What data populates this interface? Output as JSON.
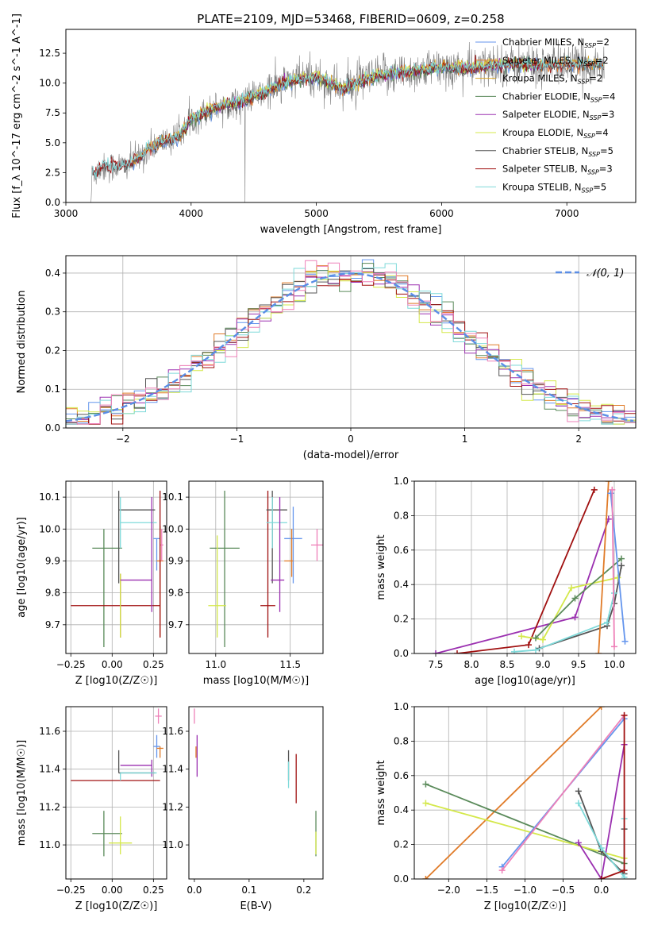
{
  "figure_title": "PLATE=2109, MJD=53468, FIBERID=0609, z=0.258",
  "colors": {
    "chabrier_miles": "#6495ed",
    "salpeter_miles": "#e07b28",
    "kroupa_miles": "#d8a52a",
    "chabrier_elodie": "#5a8a5a",
    "salpeter_elodie": "#9b30b0",
    "kroupa_elodie": "#d4e84a",
    "chabrier_stelib": "#555555",
    "salpeter_stelib": "#a01010",
    "kroupa_stelib": "#7fdada",
    "pink": "#ee80b8",
    "data_spectrum": "#808080",
    "gauss": "#5b8ee6"
  },
  "chart_data": [
    {
      "id": "spectrum",
      "type": "line",
      "xlabel": "wavelength [Angstrom, rest frame]",
      "ylabel": "Flux [f_λ 10^-17 erg cm^-2 s^-1 A^-1]",
      "xlim": [
        3000,
        7550
      ],
      "ylim": [
        0,
        14.5
      ],
      "xticks": [
        "3000",
        "4000",
        "5000",
        "6000",
        "7000"
      ],
      "yticks": [
        "0.0",
        "2.5",
        "5.0",
        "7.5",
        "10.0",
        "12.5"
      ],
      "legend": [
        {
          "name": "Chabrier MILES, N_SSP=2",
          "color_key": "chabrier_miles"
        },
        {
          "name": "Salpeter MILES, N_SSP=2",
          "color_key": "salpeter_miles"
        },
        {
          "name": "Kroupa MILES, N_SSP=2",
          "color_key": "kroupa_miles"
        },
        {
          "name": "Chabrier ELODIE, N_SSP=4",
          "color_key": "chabrier_elodie"
        },
        {
          "name": "Salpeter ELODIE, N_SSP=3",
          "color_key": "salpeter_elodie"
        },
        {
          "name": "Kroupa ELODIE, N_SSP=4",
          "color_key": "kroupa_elodie"
        },
        {
          "name": "Chabrier STELIB, N_SSP=5",
          "color_key": "chabrier_stelib"
        },
        {
          "name": "Salpeter STELIB, N_SSP=3",
          "color_key": "salpeter_stelib"
        },
        {
          "name": "Kroupa STELIB, N_SSP=5",
          "color_key": "kroupa_stelib"
        }
      ],
      "legend_placement": "upper-right",
      "continuum_knots": [
        [
          3200,
          0
        ],
        [
          3210,
          2.4
        ],
        [
          3300,
          3.0
        ],
        [
          3500,
          3.1
        ],
        [
          3700,
          4.8
        ],
        [
          3900,
          5.5
        ],
        [
          4000,
          7.0
        ],
        [
          4200,
          8.0
        ],
        [
          4400,
          8.5
        ],
        [
          4600,
          9.3
        ],
        [
          4800,
          10.2
        ],
        [
          5000,
          10.5
        ],
        [
          5200,
          9.5
        ],
        [
          5400,
          10.3
        ],
        [
          5600,
          10.8
        ],
        [
          5800,
          11.0
        ],
        [
          6000,
          11.3
        ],
        [
          6200,
          11.2
        ],
        [
          6400,
          11.5
        ],
        [
          6600,
          11.6
        ],
        [
          6800,
          11.5
        ],
        [
          7000,
          11.6
        ],
        [
          7300,
          11.5
        ]
      ]
    },
    {
      "id": "residuals",
      "type": "step",
      "xlabel": "(data-model)/error",
      "ylabel": "Normed distribution",
      "xlim": [
        -2.5,
        2.5
      ],
      "ylim": [
        0,
        0.445
      ],
      "xticks": [
        "−2",
        "−1",
        "0",
        "1",
        "2"
      ],
      "yticks": [
        "0.0",
        "0.1",
        "0.2",
        "0.3",
        "0.4"
      ],
      "grid": true,
      "legend": [
        {
          "name": "𝒩(0, 1)",
          "color_key": "gauss"
        }
      ],
      "legend_placement": "upper-right",
      "bin_width": 0.1
    },
    {
      "id": "age_vs_Z",
      "type": "errorbar",
      "xlabel": "Z [log10(Z/Z☉)]",
      "ylabel": "age  [log10(age/yr)]",
      "xlim": [
        -0.28,
        0.33
      ],
      "ylim": [
        9.61,
        10.15
      ],
      "xticks": [
        "−0.25",
        "0.00",
        "0.25"
      ],
      "yticks": [
        "9.7",
        "9.8",
        "9.9",
        "10.0",
        "10.1"
      ],
      "grid": true,
      "points": [
        {
          "color_key": "chabrier_elodie",
          "x": -0.05,
          "y": 9.94,
          "xerr": [
            0.07,
            0.11
          ],
          "yerr": [
            0.31,
            0.06
          ]
        },
        {
          "color_key": "salpeter_stelib",
          "x": 0.05,
          "y": 9.76,
          "xerr": [
            0.3,
            0.24
          ],
          "yerr": [
            0.1,
            0.1
          ]
        },
        {
          "color_key": "kroupa_elodie",
          "x": 0.05,
          "y": 9.76,
          "xerr": [
            0.0,
            0.0
          ],
          "yerr": [
            0.1,
            0.1
          ]
        },
        {
          "color_key": "chabrier_stelib",
          "x": 0.04,
          "y": 10.06,
          "xerr": [
            0.0,
            0.22
          ],
          "yerr": [
            0.23,
            0.06
          ]
        },
        {
          "color_key": "kroupa_stelib",
          "x": 0.05,
          "y": 10.02,
          "xerr": [
            0.0,
            0.22
          ],
          "yerr": [
            0.08,
            0.08
          ]
        },
        {
          "color_key": "salpeter_elodie",
          "x": 0.05,
          "y": 9.84,
          "xerr": [
            0.0,
            0.19
          ],
          "yerr": [
            0.0,
            0.0
          ]
        },
        {
          "color_key": "salpeter_elodie",
          "x": 0.24,
          "y": 9.84,
          "xerr": [
            0.0,
            0.0
          ],
          "yerr": [
            0.1,
            0.26
          ]
        },
        {
          "color_key": "chabrier_miles",
          "x": 0.27,
          "y": 9.97,
          "xerr": [
            0.02,
            0.02
          ],
          "yerr": [
            0.1,
            0.0
          ]
        },
        {
          "color_key": "salpeter_miles",
          "x": 0.29,
          "y": 9.9,
          "xerr": [
            0.02,
            0.02
          ],
          "yerr": [
            0.24,
            0.11
          ]
        },
        {
          "color_key": "pink",
          "x": 0.3,
          "y": 9.95,
          "xerr": [
            0.01,
            0.01
          ],
          "yerr": [
            0.05,
            0.05
          ]
        },
        {
          "color_key": "salpeter_stelib",
          "x": 0.29,
          "y": 9.76,
          "xerr": [
            0.0,
            0.0
          ],
          "yerr": [
            0.1,
            0.36
          ]
        }
      ]
    },
    {
      "id": "age_vs_mass",
      "type": "errorbar",
      "xlabel": "mass [log10(M/M☉)]",
      "ylabel": "",
      "xlim": [
        10.82,
        11.72
      ],
      "ylim": [
        9.61,
        10.15
      ],
      "xticks": [
        "11.0",
        "11.5"
      ],
      "yticks": [
        "9.7",
        "9.8",
        "9.9",
        "10.0",
        "10.1"
      ],
      "grid": true,
      "points": [
        {
          "color_key": "chabrier_elodie",
          "x": 11.06,
          "y": 9.94,
          "xerr": [
            0.1,
            0.1
          ],
          "yerr": [
            0.31,
            0.18
          ]
        },
        {
          "color_key": "kroupa_elodie",
          "x": 11.01,
          "y": 9.76,
          "xerr": [
            0.06,
            0.06
          ],
          "yerr": [
            0.1,
            0.22
          ]
        },
        {
          "color_key": "salpeter_stelib",
          "x": 11.35,
          "y": 9.76,
          "xerr": [
            0.05,
            0.05
          ],
          "yerr": [
            0.1,
            0.36
          ]
        },
        {
          "color_key": "chabrier_stelib",
          "x": 11.38,
          "y": 10.06,
          "xerr": [
            0.04,
            0.1
          ],
          "yerr": [
            0.23,
            0.06
          ]
        },
        {
          "color_key": "kroupa_stelib",
          "x": 11.38,
          "y": 10.02,
          "xerr": [
            0.04,
            0.1
          ],
          "yerr": [
            0.08,
            0.08
          ]
        },
        {
          "color_key": "salpeter_elodie",
          "x": 11.43,
          "y": 9.84,
          "xerr": [
            0.06,
            0.03
          ],
          "yerr": [
            0.1,
            0.26
          ]
        },
        {
          "color_key": "chabrier_miles",
          "x": 11.52,
          "y": 9.97,
          "xerr": [
            0.06,
            0.06
          ],
          "yerr": [
            0.14,
            0.1
          ]
        },
        {
          "color_key": "salpeter_miles",
          "x": 11.51,
          "y": 9.9,
          "xerr": [
            0.05,
            0.01
          ],
          "yerr": [
            0.05,
            0.1
          ]
        },
        {
          "color_key": "pink",
          "x": 11.68,
          "y": 9.95,
          "xerr": [
            0.04,
            0.04
          ],
          "yerr": [
            0.05,
            0.05
          ]
        }
      ]
    },
    {
      "id": "weight_vs_age",
      "type": "line",
      "xlabel": "age  [log10(age/yr)]",
      "ylabel": "mass weight",
      "xlim": [
        7.2,
        10.3
      ],
      "ylim": [
        0.0,
        1.0
      ],
      "xticks": [
        "7.5",
        "8.0",
        "8.5",
        "9.0",
        "9.5",
        "10.0"
      ],
      "yticks": [
        "0.0",
        "0.2",
        "0.4",
        "0.6",
        "0.8",
        "1.0"
      ],
      "grid": true,
      "series": [
        {
          "color_key": "salpeter_elodie",
          "x": [
            7.5,
            9.45,
            9.92
          ],
          "y": [
            0.0,
            0.21,
            0.78
          ]
        },
        {
          "color_key": "salpeter_stelib",
          "x": 7.8,
          "y": 0.0,
          "points": [
            [
              7.8,
              0.0
            ],
            [
              8.8,
              0.05
            ],
            [
              9.72,
              0.95
            ]
          ]
        },
        {
          "color_key": "kroupa_elodie",
          "x": [
            8.7,
            9.0,
            9.4,
            10.05
          ],
          "y": [
            0.1,
            0.08,
            0.38,
            0.44
          ]
        },
        {
          "color_key": "chabrier_elodie",
          "x": [
            8.9,
            9.45,
            10.1
          ],
          "y": [
            0.09,
            0.32,
            0.55
          ]
        },
        {
          "color_key": "chabrier_stelib",
          "x": [
            8.95,
            9.9,
            10.0,
            10.1
          ],
          "y": [
            0.03,
            0.16,
            0.29,
            0.51
          ]
        },
        {
          "color_key": "kroupa_stelib",
          "x": [
            8.6,
            8.9,
            9.9,
            10.0
          ],
          "y": [
            0.01,
            0.02,
            0.18,
            0.35
          ]
        },
        {
          "color_key": "salpeter_miles",
          "x": [
            9.78,
            9.92
          ],
          "y": [
            0.0,
            1.0
          ]
        },
        {
          "color_key": "chabrier_miles",
          "x": [
            9.95,
            10.15
          ],
          "y": [
            0.93,
            0.07
          ]
        },
        {
          "color_key": "pink",
          "x": [
            9.97,
            10.0
          ],
          "y": [
            0.95,
            0.04
          ]
        }
      ]
    },
    {
      "id": "mass_vs_Z",
      "type": "errorbar",
      "xlabel": "Z [log10(Z/Z☉)]",
      "ylabel": "mass [log10(M/M☉)]",
      "xlim": [
        -0.28,
        0.33
      ],
      "ylim": [
        10.82,
        11.73
      ],
      "xticks": [
        "−0.25",
        "0.00",
        "0.25"
      ],
      "yticks": [
        "11.0",
        "11.2",
        "11.4",
        "11.6"
      ],
      "grid": true,
      "points": [
        {
          "color_key": "salpeter_stelib",
          "x": 0.05,
          "y": 11.34,
          "xerr": [
            0.3,
            0.24
          ],
          "yerr": [
            0.0,
            0.0
          ]
        },
        {
          "color_key": "chabrier_stelib",
          "x": 0.04,
          "y": 11.38,
          "xerr": [
            0.0,
            0.22
          ],
          "yerr": [
            0.0,
            0.12
          ]
        },
        {
          "color_key": "salpeter_elodie",
          "x": 0.05,
          "y": 11.42,
          "xerr": [
            0.0,
            0.19
          ],
          "yerr": [
            0.0,
            0.0
          ]
        },
        {
          "color_key": "chabrier_elodie",
          "x": -0.05,
          "y": 11.06,
          "xerr": [
            0.07,
            0.11
          ],
          "yerr": [
            0.12,
            0.12
          ]
        },
        {
          "color_key": "kroupa_elodie",
          "x": 0.05,
          "y": 11.01,
          "xerr": [
            0.07,
            0.07
          ],
          "yerr": [
            0.06,
            0.14
          ]
        },
        {
          "color_key": "chabrier_miles",
          "x": 0.27,
          "y": 11.52,
          "xerr": [
            0.02,
            0.02
          ],
          "yerr": [
            0.06,
            0.06
          ]
        },
        {
          "color_key": "salpeter_miles",
          "x": 0.29,
          "y": 11.51,
          "xerr": [
            0.02,
            0.02
          ],
          "yerr": [
            0.05,
            0.01
          ]
        },
        {
          "color_key": "pink",
          "x": 0.28,
          "y": 11.68,
          "xerr": [
            0.02,
            0.02
          ],
          "yerr": [
            0.04,
            0.04
          ]
        },
        {
          "color_key": "salpeter_elodie",
          "x": 0.24,
          "y": 11.42,
          "xerr": [
            0.0,
            0.0
          ],
          "yerr": [
            0.06,
            0.03
          ]
        },
        {
          "color_key": "kroupa_stelib",
          "x": 0.05,
          "y": 11.38,
          "xerr": [
            0.0,
            0.22
          ],
          "yerr": [
            0.04,
            0.0
          ]
        }
      ]
    },
    {
      "id": "mass_vs_ebv",
      "type": "errorbar",
      "xlabel": "E(B-V)",
      "ylabel": "",
      "xlim": [
        -0.01,
        0.235
      ],
      "ylim": [
        10.82,
        11.73
      ],
      "xticks": [
        "0.0",
        "0.1",
        "0.2"
      ],
      "yticks": [
        "11.0",
        "11.2",
        "11.4",
        "11.6"
      ],
      "points": [
        {
          "color_key": "pink",
          "x": 0.0,
          "y": 11.68,
          "xerr": [
            0,
            0
          ],
          "yerr": [
            0.04,
            0.04
          ]
        },
        {
          "color_key": "salpeter_elodie",
          "x": 0.005,
          "y": 11.42,
          "xerr": [
            0,
            0
          ],
          "yerr": [
            0.06,
            0.16
          ]
        },
        {
          "color_key": "salpeter_miles",
          "x": 0.003,
          "y": 11.51,
          "xerr": [
            0,
            0
          ],
          "yerr": [
            0.05,
            0.01
          ]
        },
        {
          "color_key": "chabrier_stelib",
          "x": 0.172,
          "y": 11.42,
          "xerr": [
            0,
            0
          ],
          "yerr": [
            0.08,
            0.08
          ]
        },
        {
          "color_key": "kroupa_stelib",
          "x": 0.172,
          "y": 11.38,
          "xerr": [
            0,
            0
          ],
          "yerr": [
            0.08,
            0.06
          ]
        },
        {
          "color_key": "salpeter_stelib",
          "x": 0.186,
          "y": 11.34,
          "xerr": [
            0,
            0
          ],
          "yerr": [
            0.12,
            0.14
          ]
        },
        {
          "color_key": "chabrier_elodie",
          "x": 0.222,
          "y": 11.06,
          "xerr": [
            0,
            0
          ],
          "yerr": [
            0.12,
            0.12
          ]
        },
        {
          "color_key": "kroupa_elodie",
          "x": 0.222,
          "y": 11.01,
          "xerr": [
            0,
            0
          ],
          "yerr": [
            0.06,
            0.06
          ]
        }
      ]
    },
    {
      "id": "weight_vs_Z",
      "type": "line",
      "xlabel": "Z [log10(Z/Z☉)]",
      "ylabel": "mass weight",
      "xlim": [
        -2.45,
        0.45
      ],
      "ylim": [
        0.0,
        1.0
      ],
      "xticks": [
        "−2.0",
        "−1.5",
        "−1.0",
        "−0.5",
        "0.0"
      ],
      "yticks": [
        "0.0",
        "0.2",
        "0.4",
        "0.6",
        "0.8",
        "1.0"
      ],
      "grid": true,
      "series": [
        {
          "color_key": "salpeter_miles",
          "x": [
            -2.3,
            0.0
          ],
          "y": [
            0.0,
            1.0
          ]
        },
        {
          "color_key": "chabrier_elodie",
          "x": [
            -2.3,
            0.3
          ],
          "y": [
            0.55,
            0.09
          ]
        },
        {
          "color_key": "kroupa_elodie",
          "x": [
            -2.3,
            0.3
          ],
          "y": [
            0.44,
            0.12
          ]
        },
        {
          "color_key": "chabrier_miles",
          "x": [
            -1.3,
            0.3
          ],
          "y": [
            0.07,
            0.93
          ]
        },
        {
          "color_key": "pink",
          "x": [
            -1.3,
            0.3
          ],
          "y": [
            0.05,
            0.95
          ]
        },
        {
          "color_key": "salpeter_elodie",
          "x": [
            -0.3,
            0.0,
            0.3
          ],
          "y": [
            0.21,
            0.0,
            0.78
          ]
        },
        {
          "color_key": "chabrier_stelib",
          "x": [
            -0.3,
            0.0,
            0.3,
            0.3
          ],
          "y": [
            0.51,
            0.16,
            0.03,
            0.29
          ]
        },
        {
          "color_key": "kroupa_stelib",
          "x": [
            -0.3,
            0.0,
            0.3,
            0.3
          ],
          "y": [
            0.44,
            0.18,
            0.01,
            0.35
          ]
        },
        {
          "color_key": "salpeter_stelib",
          "x": [
            0.0,
            0.3,
            0.3
          ],
          "y": [
            0.0,
            0.05,
            0.95
          ]
        }
      ]
    }
  ]
}
